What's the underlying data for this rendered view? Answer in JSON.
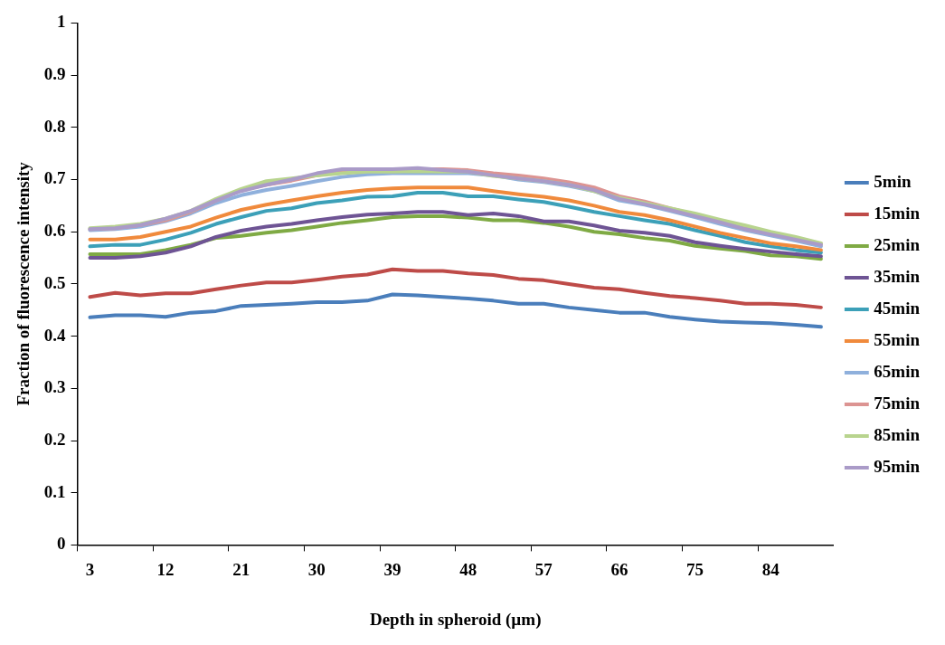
{
  "chart_data": {
    "type": "line",
    "xlabel": "Depth in spheroid (µm)",
    "ylabel": "Fraction of fluorescence intensity",
    "categories": [
      "3",
      null,
      null,
      "12",
      null,
      null,
      "21",
      null,
      null,
      "30",
      null,
      null,
      "39",
      null,
      null,
      "48",
      null,
      null,
      "57",
      null,
      null,
      "66",
      null,
      null,
      "75",
      null,
      null,
      "84",
      null,
      null
    ],
    "ylim": [
      0,
      1
    ],
    "yticks": [
      0,
      0.1,
      0.2,
      0.3,
      0.4,
      0.5,
      0.6,
      0.7,
      0.8,
      0.9,
      1
    ],
    "grid": false,
    "legend": "right",
    "marker": "none",
    "line_style": "solid",
    "series": [
      {
        "name": "5min",
        "color": "#4a7ebb",
        "values": [
          0.436,
          0.44,
          0.44,
          0.437,
          0.445,
          0.448,
          0.458,
          0.46,
          0.462,
          0.465,
          0.465,
          0.468,
          0.48,
          0.478,
          0.475,
          0.472,
          0.468,
          0.462,
          0.462,
          0.455,
          0.45,
          0.445,
          0.445,
          0.437,
          0.432,
          0.428,
          0.426,
          0.425,
          0.422,
          0.418
        ]
      },
      {
        "name": "15min",
        "color": "#be4b48",
        "values": [
          0.475,
          0.483,
          0.478,
          0.482,
          0.482,
          0.49,
          0.497,
          0.503,
          0.503,
          0.508,
          0.514,
          0.518,
          0.528,
          0.525,
          0.525,
          0.52,
          0.517,
          0.51,
          0.507,
          0.5,
          0.493,
          0.49,
          0.483,
          0.477,
          0.473,
          0.468,
          0.462,
          0.462,
          0.46,
          0.455
        ]
      },
      {
        "name": "25min",
        "color": "#7faa44",
        "values": [
          0.557,
          0.557,
          0.557,
          0.565,
          0.575,
          0.588,
          0.592,
          0.598,
          0.603,
          0.61,
          0.617,
          0.622,
          0.628,
          0.63,
          0.63,
          0.627,
          0.622,
          0.622,
          0.617,
          0.61,
          0.6,
          0.595,
          0.588,
          0.583,
          0.573,
          0.568,
          0.563,
          0.555,
          0.553,
          0.548
        ]
      },
      {
        "name": "35min",
        "color": "#6e5494",
        "values": [
          0.55,
          0.55,
          0.553,
          0.56,
          0.572,
          0.59,
          0.602,
          0.61,
          0.615,
          0.622,
          0.628,
          0.633,
          0.635,
          0.638,
          0.638,
          0.632,
          0.635,
          0.63,
          0.62,
          0.62,
          0.612,
          0.602,
          0.598,
          0.592,
          0.58,
          0.573,
          0.567,
          0.562,
          0.557,
          0.553
        ]
      },
      {
        "name": "45min",
        "color": "#3ca0b8",
        "values": [
          0.572,
          0.575,
          0.575,
          0.585,
          0.598,
          0.615,
          0.628,
          0.64,
          0.645,
          0.655,
          0.66,
          0.667,
          0.668,
          0.675,
          0.675,
          0.668,
          0.668,
          0.662,
          0.657,
          0.648,
          0.638,
          0.63,
          0.622,
          0.615,
          0.603,
          0.592,
          0.58,
          0.572,
          0.565,
          0.56
        ]
      },
      {
        "name": "55min",
        "color": "#f08a3c",
        "values": [
          0.585,
          0.585,
          0.59,
          0.6,
          0.61,
          0.627,
          0.642,
          0.652,
          0.66,
          0.668,
          0.675,
          0.68,
          0.683,
          0.685,
          0.685,
          0.685,
          0.678,
          0.672,
          0.667,
          0.66,
          0.65,
          0.638,
          0.632,
          0.622,
          0.61,
          0.598,
          0.588,
          0.578,
          0.572,
          0.565
        ]
      },
      {
        "name": "65min",
        "color": "#8fb0dc",
        "values": [
          0.603,
          0.605,
          0.61,
          0.62,
          0.635,
          0.655,
          0.67,
          0.68,
          0.688,
          0.697,
          0.705,
          0.71,
          0.712,
          0.712,
          0.712,
          0.712,
          0.708,
          0.7,
          0.695,
          0.688,
          0.678,
          0.66,
          0.652,
          0.64,
          0.628,
          0.615,
          0.603,
          0.593,
          0.583,
          0.572
        ]
      },
      {
        "name": "75min",
        "color": "#dc9492",
        "values": [
          0.605,
          0.607,
          0.613,
          0.622,
          0.638,
          0.66,
          0.68,
          0.69,
          0.698,
          0.708,
          0.715,
          0.718,
          0.718,
          0.72,
          0.72,
          0.718,
          0.712,
          0.708,
          0.702,
          0.695,
          0.685,
          0.668,
          0.658,
          0.645,
          0.633,
          0.62,
          0.608,
          0.598,
          0.588,
          0.577
        ]
      },
      {
        "name": "85min",
        "color": "#b8d48e",
        "values": [
          0.607,
          0.61,
          0.615,
          0.625,
          0.64,
          0.663,
          0.682,
          0.697,
          0.702,
          0.708,
          0.712,
          0.715,
          0.715,
          0.716,
          0.715,
          0.715,
          0.707,
          0.702,
          0.697,
          0.69,
          0.678,
          0.665,
          0.655,
          0.645,
          0.635,
          0.623,
          0.612,
          0.6,
          0.59,
          0.578
        ]
      },
      {
        "name": "95min",
        "color": "#aa9bc8",
        "values": [
          0.605,
          0.607,
          0.613,
          0.625,
          0.64,
          0.66,
          0.678,
          0.69,
          0.7,
          0.712,
          0.72,
          0.72,
          0.72,
          0.722,
          0.718,
          0.715,
          0.708,
          0.702,
          0.697,
          0.69,
          0.68,
          0.663,
          0.653,
          0.642,
          0.63,
          0.618,
          0.605,
          0.595,
          0.585,
          0.575
        ]
      }
    ]
  }
}
